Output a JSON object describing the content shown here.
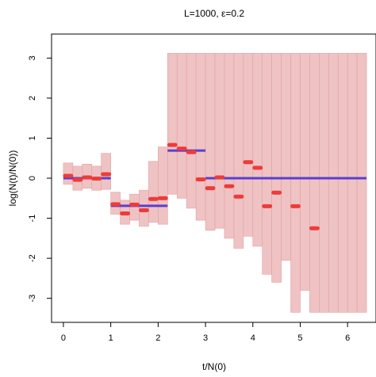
{
  "chart_data": {
    "type": "line",
    "title": "L=1000, ε=0.2",
    "xlabel": "t/N(0)",
    "ylabel": "log(N(t)/N(0))",
    "xlim": [
      -0.25,
      6.6
    ],
    "ylim": [
      -3.6,
      3.6
    ],
    "x_ticks": [
      0,
      1,
      2,
      3,
      4,
      5,
      6
    ],
    "y_ticks": [
      -3,
      -2,
      -1,
      0,
      1,
      2,
      3
    ],
    "x_tick_labels": [
      "0",
      "1",
      "2",
      "3",
      "4",
      "5",
      "6"
    ],
    "y_tick_labels": [
      "-3",
      "-2",
      "-1",
      "0",
      "1",
      "2",
      "3"
    ],
    "colors": {
      "band": "#efc3c3",
      "band_edge": "#e0a0a0",
      "estimate": "#ee3b3b",
      "true": "#5a3fd0"
    },
    "confidence_bands": [
      {
        "x0": 0.0,
        "x1": 0.2,
        "lo": -0.15,
        "hi": 0.38
      },
      {
        "x0": 0.2,
        "x1": 0.4,
        "lo": -0.3,
        "hi": 0.3
      },
      {
        "x0": 0.4,
        "x1": 0.6,
        "lo": -0.25,
        "hi": 0.35
      },
      {
        "x0": 0.6,
        "x1": 0.8,
        "lo": -0.3,
        "hi": 0.3
      },
      {
        "x0": 0.8,
        "x1": 1.0,
        "lo": -0.28,
        "hi": 0.62
      },
      {
        "x0": 1.0,
        "x1": 1.2,
        "lo": -0.9,
        "hi": -0.35
      },
      {
        "x0": 1.2,
        "x1": 1.4,
        "lo": -1.15,
        "hi": -0.55
      },
      {
        "x0": 1.4,
        "x1": 1.6,
        "lo": -1.05,
        "hi": -0.4
      },
      {
        "x0": 1.6,
        "x1": 1.8,
        "lo": -1.2,
        "hi": -0.3
      },
      {
        "x0": 1.8,
        "x1": 2.0,
        "lo": -1.1,
        "hi": 0.42
      },
      {
        "x0": 2.0,
        "x1": 2.2,
        "lo": -1.15,
        "hi": 0.78
      },
      {
        "x0": 2.2,
        "x1": 2.4,
        "lo": -0.4,
        "hi": 3.12
      },
      {
        "x0": 2.4,
        "x1": 2.6,
        "lo": -0.5,
        "hi": 3.12
      },
      {
        "x0": 2.6,
        "x1": 2.8,
        "lo": -0.75,
        "hi": 3.12
      },
      {
        "x0": 2.8,
        "x1": 3.0,
        "lo": -1.05,
        "hi": 3.12
      },
      {
        "x0": 3.0,
        "x1": 3.2,
        "lo": -1.3,
        "hi": 3.12
      },
      {
        "x0": 3.2,
        "x1": 3.4,
        "lo": -1.25,
        "hi": 3.12
      },
      {
        "x0": 3.4,
        "x1": 3.6,
        "lo": -1.5,
        "hi": 3.12
      },
      {
        "x0": 3.6,
        "x1": 3.8,
        "lo": -1.75,
        "hi": 3.12
      },
      {
        "x0": 3.8,
        "x1": 4.0,
        "lo": -1.45,
        "hi": 3.12
      },
      {
        "x0": 4.0,
        "x1": 4.2,
        "lo": -1.7,
        "hi": 3.12
      },
      {
        "x0": 4.2,
        "x1": 4.4,
        "lo": -2.4,
        "hi": 3.12
      },
      {
        "x0": 4.4,
        "x1": 4.6,
        "lo": -2.6,
        "hi": 3.12
      },
      {
        "x0": 4.6,
        "x1": 4.8,
        "lo": -2.05,
        "hi": 3.12
      },
      {
        "x0": 4.8,
        "x1": 5.0,
        "lo": -3.35,
        "hi": 3.12
      },
      {
        "x0": 5.0,
        "x1": 5.2,
        "lo": -2.8,
        "hi": 3.12
      },
      {
        "x0": 5.2,
        "x1": 5.4,
        "lo": -3.35,
        "hi": 3.12
      },
      {
        "x0": 5.4,
        "x1": 5.6,
        "lo": -3.35,
        "hi": 3.12
      },
      {
        "x0": 5.6,
        "x1": 5.8,
        "lo": -3.35,
        "hi": 3.12
      },
      {
        "x0": 5.8,
        "x1": 6.0,
        "lo": -3.35,
        "hi": 3.12
      },
      {
        "x0": 6.0,
        "x1": 6.2,
        "lo": -3.35,
        "hi": 3.12
      },
      {
        "x0": 6.2,
        "x1": 6.4,
        "lo": -3.35,
        "hi": 3.12
      }
    ],
    "estimates": [
      {
        "x0": 0.0,
        "x1": 0.2,
        "y": 0.06
      },
      {
        "x0": 0.2,
        "x1": 0.4,
        "y": -0.04
      },
      {
        "x0": 0.4,
        "x1": 0.6,
        "y": 0.02
      },
      {
        "x0": 0.6,
        "x1": 0.8,
        "y": -0.01
      },
      {
        "x0": 0.8,
        "x1": 1.0,
        "y": 0.1
      },
      {
        "x0": 1.0,
        "x1": 1.2,
        "y": -0.65
      },
      {
        "x0": 1.2,
        "x1": 1.4,
        "y": -0.88
      },
      {
        "x0": 1.4,
        "x1": 1.6,
        "y": -0.66
      },
      {
        "x0": 1.6,
        "x1": 1.8,
        "y": -0.8
      },
      {
        "x0": 1.8,
        "x1": 2.0,
        "y": -0.52
      },
      {
        "x0": 2.0,
        "x1": 2.2,
        "y": -0.5
      },
      {
        "x0": 2.2,
        "x1": 2.4,
        "y": 0.83
      },
      {
        "x0": 2.4,
        "x1": 2.6,
        "y": 0.74
      },
      {
        "x0": 2.6,
        "x1": 2.8,
        "y": 0.65
      },
      {
        "x0": 2.8,
        "x1": 3.0,
        "y": -0.03
      },
      {
        "x0": 3.0,
        "x1": 3.2,
        "y": -0.25
      },
      {
        "x0": 3.2,
        "x1": 3.4,
        "y": 0.02
      },
      {
        "x0": 3.4,
        "x1": 3.6,
        "y": -0.2
      },
      {
        "x0": 3.6,
        "x1": 3.8,
        "y": -0.46
      },
      {
        "x0": 3.8,
        "x1": 4.0,
        "y": 0.4
      },
      {
        "x0": 4.0,
        "x1": 4.2,
        "y": 0.26
      },
      {
        "x0": 4.2,
        "x1": 4.4,
        "y": -0.7
      },
      {
        "x0": 4.4,
        "x1": 4.6,
        "y": -0.36
      },
      {
        "x0": 4.8,
        "x1": 5.0,
        "y": -0.7
      },
      {
        "x0": 5.2,
        "x1": 5.4,
        "y": -1.25
      }
    ],
    "true_steps": [
      {
        "x0": 0.0,
        "x1": 1.0,
        "y": 0.0
      },
      {
        "x0": 1.0,
        "x1": 2.2,
        "y": -0.69
      },
      {
        "x0": 2.2,
        "x1": 3.0,
        "y": 0.69
      },
      {
        "x0": 3.0,
        "x1": 6.4,
        "y": 0.0
      }
    ]
  }
}
